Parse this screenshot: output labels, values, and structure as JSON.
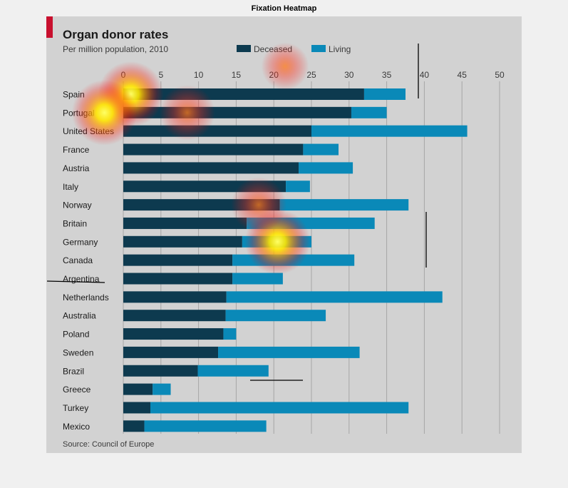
{
  "figure_title": "Fixation Heatmap",
  "chart_data": {
    "type": "bar",
    "orientation": "horizontal",
    "stacked": true,
    "title": "Organ donor rates",
    "subtitle": "Per million population, 2010",
    "source": "Source: Council of Europe",
    "xlim": [
      0,
      50
    ],
    "x_ticks": [
      "0",
      "5",
      "10",
      "15",
      "20",
      "25",
      "30",
      "35",
      "40",
      "45",
      "50"
    ],
    "x_tick_values": [
      0,
      5,
      10,
      15,
      20,
      25,
      30,
      35,
      40,
      45,
      50
    ],
    "grid": true,
    "legend_position": "top",
    "categories": [
      "Spain",
      "Portugal",
      "United States",
      "France",
      "Austria",
      "Italy",
      "Norway",
      "Britain",
      "Germany",
      "Canada",
      "Argentina",
      "Netherlands",
      "Australia",
      "Poland",
      "Sweden",
      "Brazil",
      "Greece",
      "Turkey",
      "Mexico"
    ],
    "series": [
      {
        "name": "Deceased",
        "color": "#0d3a4f",
        "values": [
          32.0,
          30.3,
          25.0,
          23.9,
          23.3,
          21.6,
          20.8,
          16.4,
          15.8,
          14.5,
          14.5,
          13.7,
          13.6,
          13.3,
          12.6,
          9.9,
          3.9,
          3.6,
          2.8
        ]
      },
      {
        "name": "Living",
        "color": "#0a89b8",
        "values": [
          5.5,
          4.7,
          20.7,
          4.7,
          7.2,
          3.2,
          17.1,
          17.0,
          9.2,
          16.2,
          6.7,
          28.7,
          13.3,
          1.7,
          18.8,
          9.4,
          2.4,
          34.3,
          16.2
        ]
      }
    ]
  },
  "colors": {
    "panel_bg": "#d2d2d2",
    "accent_red": "#c8102e",
    "gridline": "#a6a6a6",
    "text_dark": "#1a1a1a",
    "text_mid": "#3a3a3a"
  },
  "heatmap": {
    "hotspots": [
      {
        "x": 1.0,
        "label_index": 0,
        "intensity": 1.0
      },
      {
        "x": -2.5,
        "label_index": 1,
        "intensity": 1.0
      },
      {
        "x": 8.5,
        "label_index": 1,
        "intensity": 0.6
      },
      {
        "x": 20.5,
        "label_index": 8,
        "intensity": 1.0
      },
      {
        "x": 18.0,
        "label_index": 6,
        "intensity": 0.6
      },
      {
        "x": 21.5,
        "label_index": -1,
        "intensity": 0.3
      }
    ]
  }
}
